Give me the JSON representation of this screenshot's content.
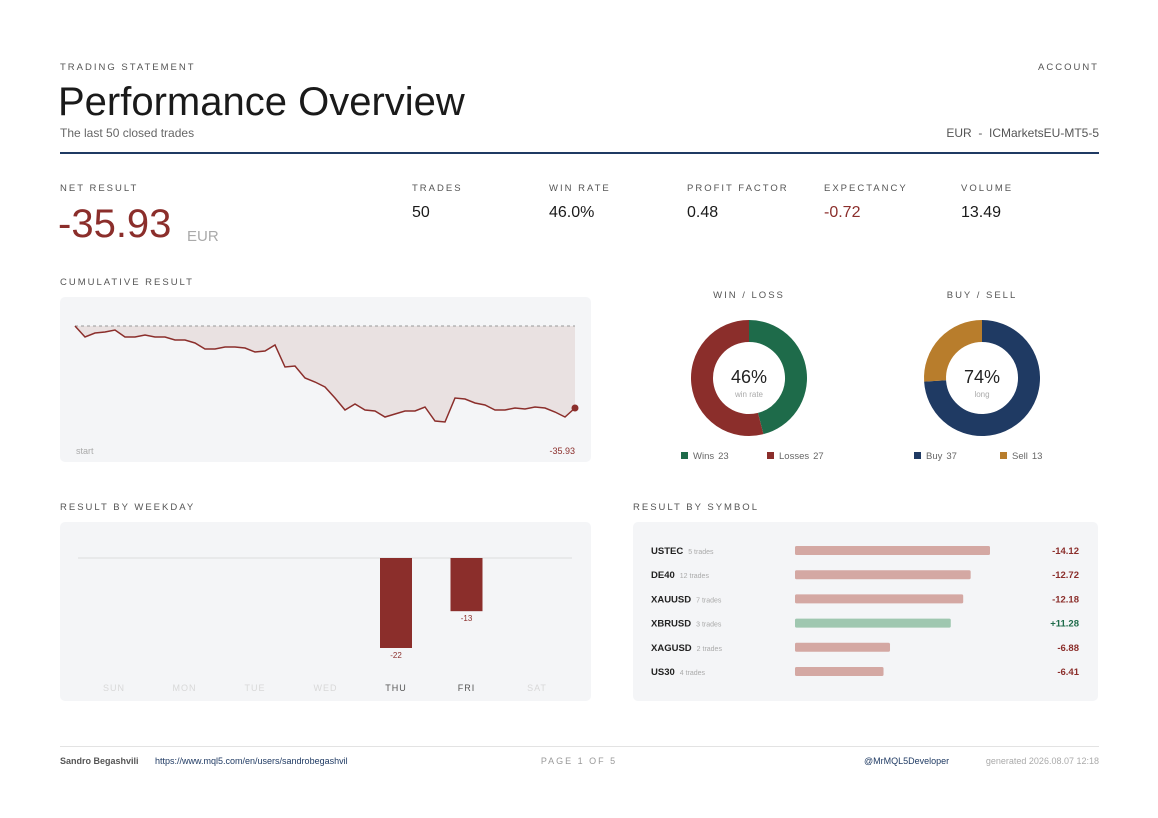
{
  "header": {
    "eyebrow": "TRADING STATEMENT",
    "title": "Performance Overview",
    "subtitle": "The last 50 closed trades",
    "account_label": "ACCOUNT",
    "account": "EUR  -  ICMarketsEU-MT5-5"
  },
  "net_result": {
    "label": "NET RESULT",
    "value": "-35.93",
    "unit": "EUR"
  },
  "kpis": [
    {
      "label": "TRADES",
      "value": "50"
    },
    {
      "label": "WIN RATE",
      "value": "46.0%"
    },
    {
      "label": "PROFIT FACTOR",
      "value": "0.48"
    },
    {
      "label": "EXPECTANCY",
      "value": "-0.72"
    },
    {
      "label": "VOLUME",
      "value": "13.49"
    }
  ],
  "cumulative": {
    "type": "line",
    "title": "CUMULATIVE RESULT",
    "start_label": "start",
    "end_label": "-35.93",
    "color": "#8b2e2b",
    "values": [
      0,
      -4.82,
      -3.07,
      -2.63,
      -1.75,
      -4.82,
      -4.82,
      -3.94,
      -4.82,
      -4.82,
      -6.13,
      -6.13,
      -7.45,
      -10.07,
      -10.07,
      -9.2,
      -9.2,
      -9.64,
      -11.39,
      -10.95,
      -8.32,
      -17.96,
      -17.52,
      -22.78,
      -24.53,
      -26.72,
      -31.54,
      -36.79,
      -34.16,
      -36.79,
      -37.23,
      -39.86,
      -38.54,
      -37.23,
      -37.23,
      -35.48,
      -41.61,
      -42.05,
      -31.54,
      -31.97,
      -33.73,
      -34.6,
      -36.79,
      -36.79,
      -35.93,
      -36.35,
      -35.48,
      -35.93,
      -37.67,
      -39.86,
      -35.93
    ]
  },
  "win_loss": {
    "type": "donut",
    "title": "WIN / LOSS",
    "center": "46%",
    "center_sub": "win rate",
    "series": [
      {
        "name": "Wins",
        "value": 23,
        "color": "#1e6b4a"
      },
      {
        "name": "Losses",
        "value": 27,
        "color": "#8b2e2b"
      }
    ]
  },
  "buy_sell": {
    "type": "donut",
    "title": "BUY / SELL",
    "center": "74%",
    "center_sub": "long",
    "series": [
      {
        "name": "Buy",
        "value": 37,
        "color": "#1f3a63"
      },
      {
        "name": "Sell",
        "value": 13,
        "color": "#b87d2c"
      }
    ]
  },
  "weekday": {
    "type": "bar",
    "title": "RESULT BY WEEKDAY",
    "categories": [
      "SUN",
      "MON",
      "TUE",
      "WED",
      "THU",
      "FRI",
      "SAT"
    ],
    "values": [
      null,
      null,
      null,
      null,
      -22,
      -13,
      null
    ],
    "color": "#8b2e2b"
  },
  "symbols": {
    "type": "hbar",
    "title": "RESULT BY SYMBOL",
    "names": [
      "USTEC",
      "DE40",
      "XAUUSD",
      "XBRUSD",
      "XAGUSD",
      "US30"
    ],
    "trades": [
      "5 trades",
      "12 trades",
      "7 trades",
      "3 trades",
      "2 trades",
      "4 trades"
    ],
    "values": [
      -14.12,
      -12.72,
      -12.18,
      11.28,
      -6.88,
      -6.41
    ],
    "value_labels": [
      "-14.12",
      "-12.72",
      "-12.18",
      "+11.28",
      "-6.88",
      "-6.41"
    ],
    "negative_color": "#d4a8a3",
    "positive_color": "#9fc7b0"
  },
  "footer": {
    "author": "Sandro Begashvili",
    "url": "https://www.mql5.com/en/users/sandrobegashvil",
    "page": "PAGE 1 OF 5",
    "handle": "@MrMQL5Developer",
    "generated": "generated 2026.08.07 12:18"
  }
}
